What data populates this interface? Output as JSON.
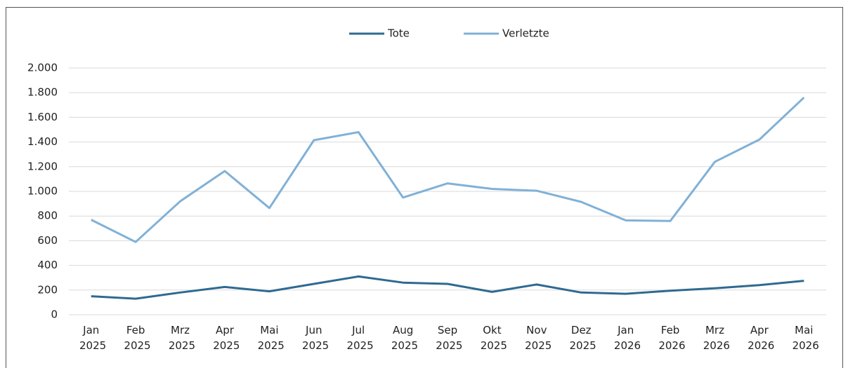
{
  "chart_data": {
    "type": "line",
    "categories": [
      "Jan 2025",
      "Feb 2025",
      "Mrz 2025",
      "Apr 2025",
      "Mai 2025",
      "Jun 2025",
      "Jul 2025",
      "Aug 2025",
      "Sep 2025",
      "Okt 2025",
      "Nov 2025",
      "Dez 2025",
      "Jan 2026",
      "Feb 2026",
      "Mrz 2026",
      "Apr 2026",
      "Mai 2026"
    ],
    "series": [
      {
        "name": "Tote",
        "color": "#2e6a91",
        "values": [
          150,
          130,
          180,
          225,
          190,
          250,
          310,
          260,
          250,
          185,
          245,
          180,
          170,
          195,
          215,
          240,
          275
        ]
      },
      {
        "name": "Verletzte",
        "color": "#80b1d7",
        "values": [
          770,
          590,
          920,
          1165,
          865,
          1415,
          1480,
          950,
          1065,
          1020,
          1005,
          915,
          765,
          760,
          1240,
          1420,
          1760
        ]
      }
    ],
    "ylim": [
      0,
      2000
    ],
    "yticks": [
      0,
      200,
      400,
      600,
      800,
      {
        "value": 1000,
        "label": "1.000"
      },
      {
        "value": 1200,
        "label": "1.200"
      },
      {
        "value": 1400,
        "label": "1.400"
      },
      {
        "value": 1600,
        "label": "1.600"
      },
      {
        "value": 1800,
        "label": "1.800"
      },
      {
        "value": 2000,
        "label": "2.000"
      }
    ],
    "grid": true,
    "legend": "top"
  }
}
